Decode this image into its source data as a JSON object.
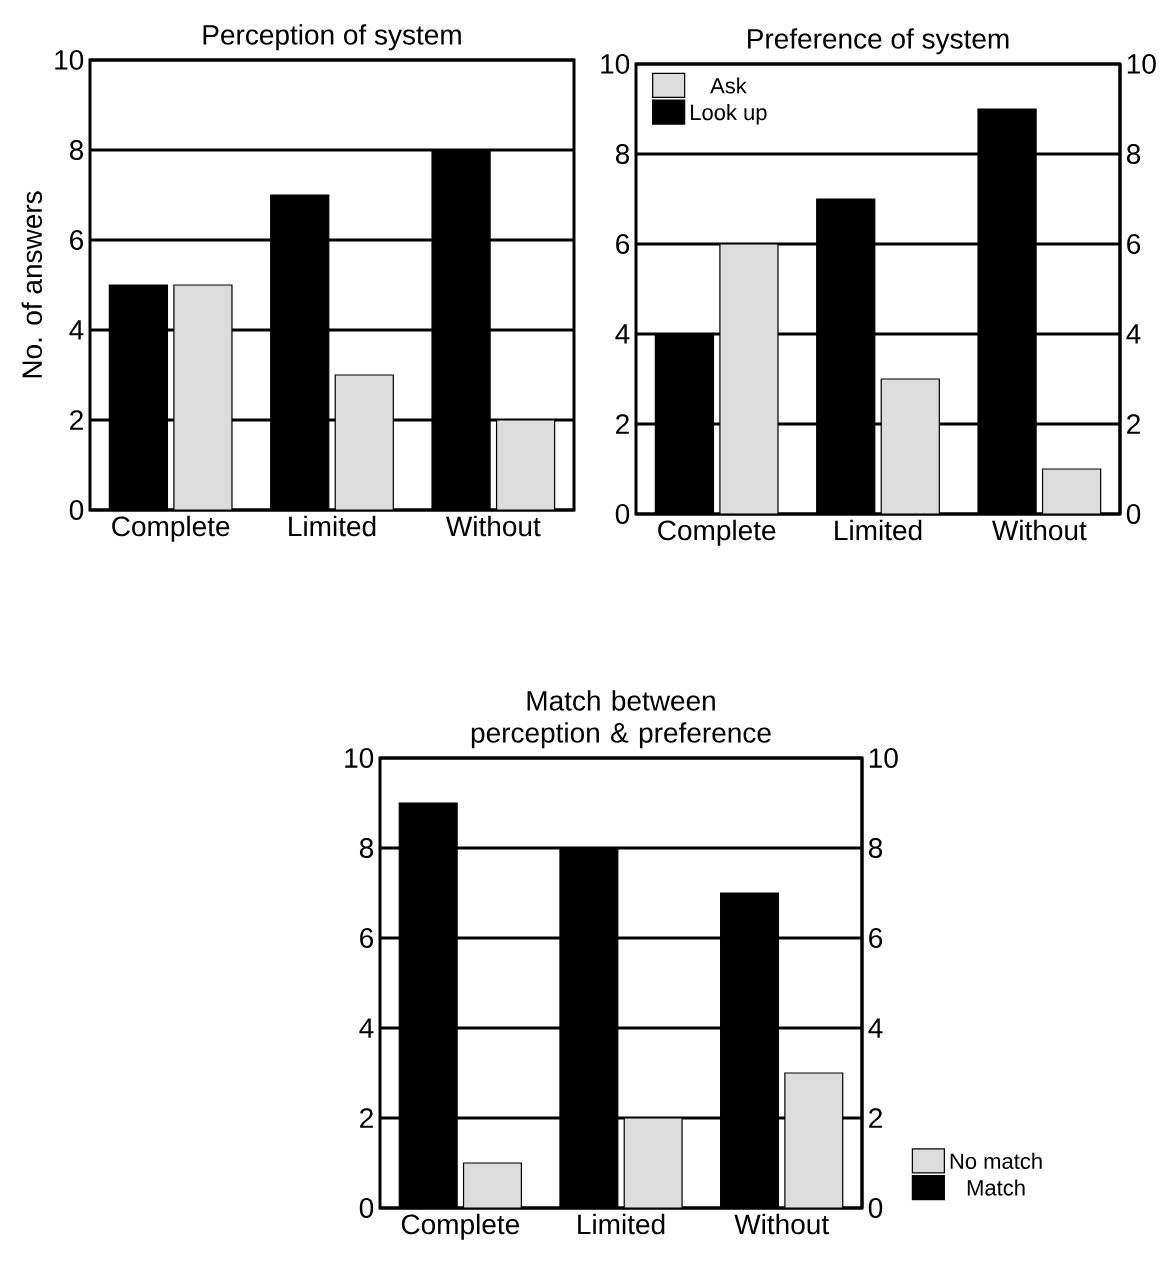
{
  "chart_data": [
    {
      "type": "bar",
      "title": "Perception of system",
      "ylabel": "No. of answers",
      "categories": [
        "Complete",
        "Limited",
        "Without"
      ],
      "series": [
        {
          "color": "#000000",
          "values": [
            5,
            7,
            8
          ]
        },
        {
          "color": "#dcdcdc",
          "values": [
            5,
            3,
            2
          ]
        }
      ],
      "ylim": [
        0,
        10
      ],
      "yticks": [
        0,
        2,
        4,
        6,
        8,
        10
      ],
      "grid": "y"
    },
    {
      "type": "bar",
      "title": "Preference of system",
      "categories": [
        "Complete",
        "Limited",
        "Without"
      ],
      "series": [
        {
          "name": "Look up",
          "color": "#000000",
          "values": [
            4,
            7,
            9
          ]
        },
        {
          "name": "Ask",
          "color": "#dcdcdc",
          "values": [
            6,
            3,
            1
          ]
        }
      ],
      "ylim": [
        0,
        10
      ],
      "yticks": [
        0,
        2,
        4,
        6,
        8,
        10
      ],
      "y2lim": [
        0,
        10
      ],
      "y2ticks": [
        0,
        2,
        4,
        6,
        8,
        10
      ],
      "grid": "y",
      "legend": "top left"
    },
    {
      "type": "bar",
      "title": "Match between perception & preference",
      "categories": [
        "Complete",
        "Limited",
        "Without"
      ],
      "series": [
        {
          "name": "Match",
          "color": "#000000",
          "values": [
            9,
            8,
            7
          ]
        },
        {
          "name": "No match",
          "color": "#dcdcdc",
          "values": [
            1,
            2,
            3
          ]
        }
      ],
      "ylim": [
        0,
        10
      ],
      "yticks": [
        0,
        2,
        4,
        6,
        8,
        10
      ],
      "y2lim": [
        0,
        10
      ],
      "y2ticks": [
        0,
        2,
        4,
        6,
        8,
        10
      ],
      "grid": "y",
      "legend": "bottom right"
    }
  ]
}
